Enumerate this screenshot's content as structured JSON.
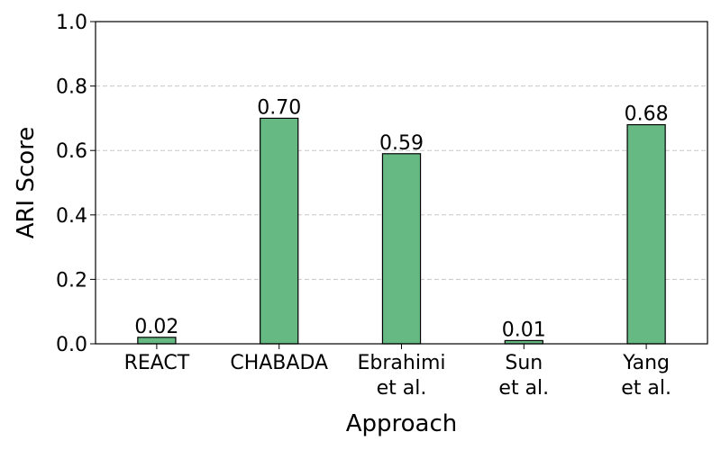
{
  "chart_data": {
    "type": "bar",
    "categories": [
      "REACT",
      "CHABADA",
      "Ebrahimi\net al.",
      "Sun\net al.",
      "Yang\net al."
    ],
    "values": [
      0.02,
      0.7,
      0.59,
      0.01,
      0.68
    ],
    "value_labels": [
      "0.02",
      "0.70",
      "0.59",
      "0.01",
      "0.68"
    ],
    "xlabel": "Approach",
    "ylabel": "ARI Score",
    "ylim": [
      0,
      1.0
    ],
    "yticks": [
      "0.0",
      "0.2",
      "0.4",
      "0.6",
      "0.8",
      "1.0"
    ],
    "grid": "y-dashed",
    "bar_color": "#66b983",
    "edge_color": "#000000"
  }
}
